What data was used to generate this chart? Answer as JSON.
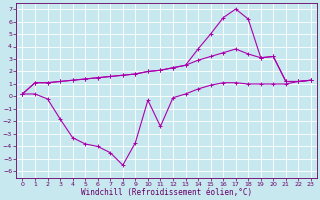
{
  "bg_color": "#c8e8f0",
  "line_color": "#aa00aa",
  "xlabel": "Windchill (Refroidissement éolien,°C)",
  "xlim": [
    -0.5,
    23.5
  ],
  "ylim": [
    -6.5,
    7.5
  ],
  "xticks": [
    0,
    1,
    2,
    3,
    4,
    5,
    6,
    7,
    8,
    9,
    10,
    11,
    12,
    13,
    14,
    15,
    16,
    17,
    18,
    19,
    20,
    21,
    22,
    23
  ],
  "yticks": [
    -6,
    -5,
    -4,
    -3,
    -2,
    -1,
    0,
    1,
    2,
    3,
    4,
    5,
    6,
    7
  ],
  "line1_y": [
    0.2,
    1.1,
    1.1,
    1.2,
    1.3,
    1.4,
    1.5,
    1.6,
    1.7,
    1.8,
    2.0,
    2.1,
    2.3,
    2.5,
    2.9,
    3.2,
    3.5,
    3.8,
    3.4,
    3.1,
    3.2,
    1.2,
    1.2,
    1.3
  ],
  "line2_y": [
    0.2,
    1.1,
    1.1,
    1.2,
    1.3,
    1.4,
    1.5,
    1.6,
    1.7,
    1.8,
    2.0,
    2.1,
    2.3,
    2.5,
    3.8,
    5.0,
    6.3,
    7.0,
    6.2,
    3.1,
    3.2,
    1.2,
    1.2,
    1.3
  ],
  "line3_y": [
    0.2,
    0.2,
    -0.2,
    -1.8,
    -3.3,
    -3.8,
    -4.0,
    -4.5,
    -5.5,
    -3.7,
    -0.3,
    -2.4,
    -0.1,
    0.2,
    0.6,
    0.9,
    1.1,
    1.1,
    1.0,
    1.0,
    1.0,
    1.0,
    1.2,
    1.3
  ],
  "figsize": [
    3.2,
    2.0
  ],
  "dpi": 100,
  "tick_labelsize": 4.5,
  "xlabel_fontsize": 5.5,
  "linewidth": 0.8,
  "markersize": 1.8
}
